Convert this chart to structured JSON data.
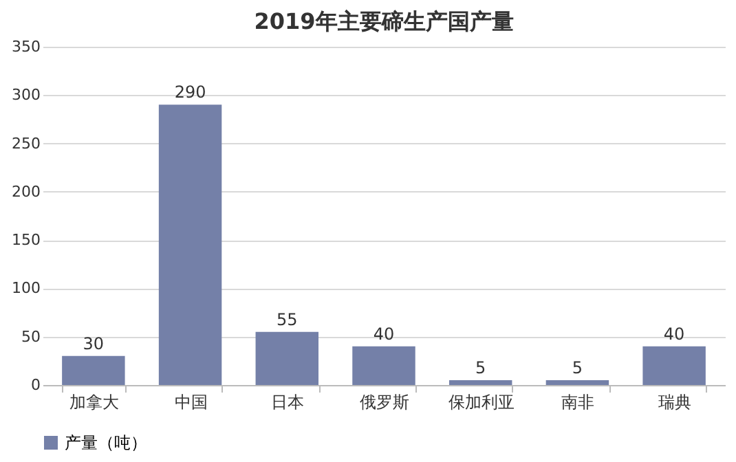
{
  "chart_data": {
    "type": "bar",
    "title": "2019年主要碲生产国产量",
    "categories": [
      "加拿大",
      "中国",
      "日本",
      "俄罗斯",
      "保加利亚",
      "南非",
      "瑞典"
    ],
    "series": [
      {
        "name": "产量（吨）",
        "color": "#7480a8",
        "values": [
          30,
          290,
          55,
          40,
          5,
          5,
          40
        ]
      }
    ],
    "ylim": [
      0,
      350
    ],
    "yticks": [
      0,
      50,
      100,
      150,
      200,
      250,
      300,
      350
    ],
    "grid": "y",
    "legend": "bottom",
    "data_labels": true
  }
}
